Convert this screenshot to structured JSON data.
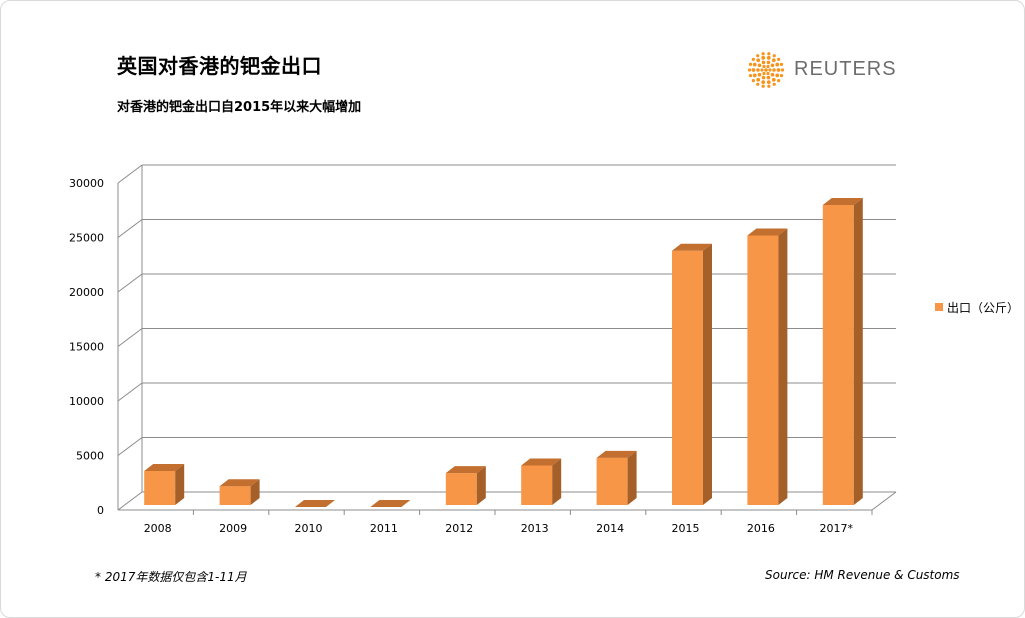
{
  "header": {
    "title": "英国对香港的钯金出口",
    "subtitle": "对香港的钯金出口自2015年以来大幅增加"
  },
  "logo": {
    "text": "REUTERS",
    "accent_color": "#f7941d"
  },
  "footer": {
    "footnote": "*  2017年数据仅包含1-11月",
    "source": "Source:  HM Revenue & Customs"
  },
  "chart_data": {
    "type": "bar",
    "categories": [
      "2008",
      "2009",
      "2010",
      "2011",
      "2012",
      "2013",
      "2014",
      "2015",
      "2016",
      "2017*"
    ],
    "series": [
      {
        "name": "出口（公斤）",
        "values": [
          3400,
          2000,
          0,
          0,
          3200,
          3900,
          4600,
          23600,
          25000,
          27800
        ],
        "color": "#f79646"
      }
    ],
    "ylim": [
      0,
      30000
    ],
    "yticks": [
      "0",
      "5000",
      "10000",
      "15000",
      "20000",
      "25000",
      "30000"
    ],
    "legend_position": "right",
    "grid": true,
    "style": "3d"
  }
}
